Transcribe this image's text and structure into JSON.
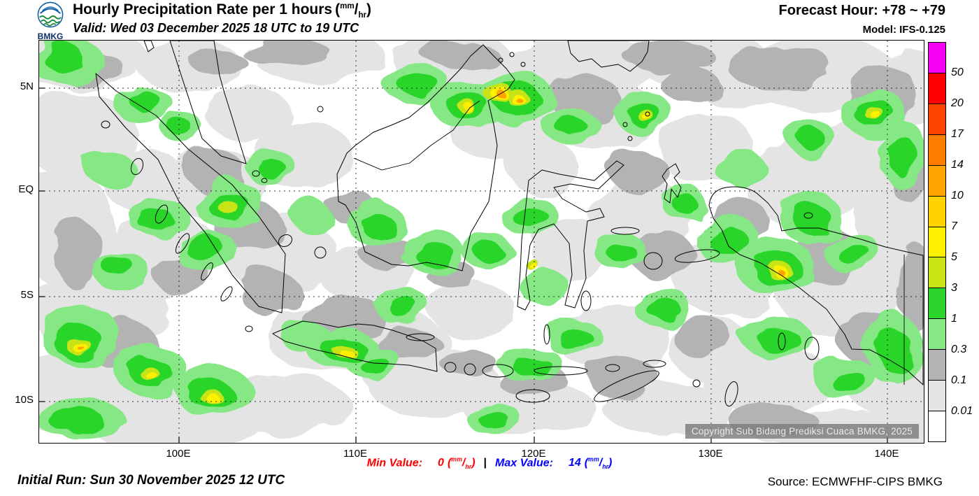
{
  "header": {
    "logo_text": "BMKG",
    "title": "Hourly Precipitation Rate per 1 hours",
    "valid": "Valid: Wed 03 December 2025 18 UTC to 19 UTC",
    "forecast_hour": "Forecast Hour: +78 ~ +79",
    "model": "Model: IFS-0.125"
  },
  "units": {
    "open": "(",
    "sup": "mm",
    "slash": "/",
    "sub": "hr",
    "close": ")"
  },
  "map": {
    "lat_labels": [
      "5N",
      "EQ",
      "5S",
      "10S"
    ],
    "lon_labels": [
      "100E",
      "110E",
      "120E",
      "130E",
      "140E"
    ],
    "copyright": "Copyright Sub Bidang Prediksi Cuaca BMKG, 2025"
  },
  "legend": {
    "labels": [
      "50",
      "20",
      "17",
      "14",
      "10",
      "7",
      "5",
      "3",
      "1",
      "0.3",
      "0.1",
      "0.01"
    ],
    "colors": [
      "#f400f4",
      "#fe0000",
      "#ff4600",
      "#ff7d00",
      "#ffa400",
      "#ffd200",
      "#fff000",
      "#c8e414",
      "#2bd52b",
      "#85e885",
      "#b3b3b3",
      "#e4e4e4",
      "#ffffff"
    ]
  },
  "footer": {
    "initial_run": "Initial Run: Sun 30 November 2025 12 UTC",
    "min_label": "Min Value:",
    "min_value": "0",
    "separator": "|",
    "max_label": "Max Value:",
    "max_value": "14",
    "source": "Source: ECMWFHF-CIPS BMKG"
  },
  "colors": {
    "min_value": "#ff0000",
    "max_value": "#0000ff",
    "coastline": "#000000"
  }
}
